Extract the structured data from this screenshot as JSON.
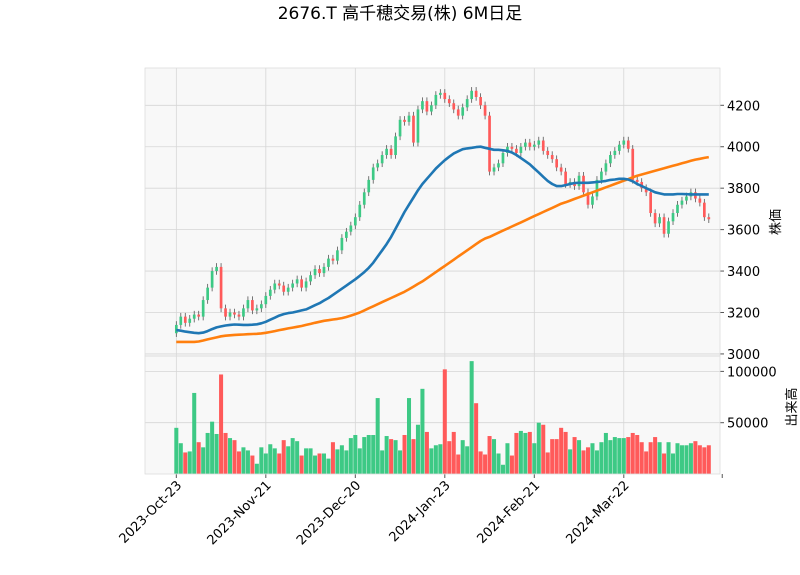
{
  "chart_data": {
    "type": "candlestick",
    "title": "2676.T 高千穂交易(株) 6M日足",
    "price_panel": {
      "ylabel": "株価",
      "ylim": [
        2990,
        4380
      ],
      "yticks": [
        3000,
        3200,
        3400,
        3600,
        3800,
        4000,
        4200
      ],
      "grid": true
    },
    "volume_panel": {
      "ylabel": "出来高",
      "ylim": [
        0,
        115000
      ],
      "yticks": [
        50000,
        100000
      ],
      "ytick_labels": [
        "50000",
        "100000"
      ],
      "grid": true
    },
    "x_ticks": [
      {
        "label": "2023-Oct-23",
        "index": 0
      },
      {
        "label": "2023-Nov-21",
        "index": 20
      },
      {
        "label": "2023-Dec-20",
        "index": 40
      },
      {
        "label": "2024-Jan-23",
        "index": 60
      },
      {
        "label": "2024-Feb-21",
        "index": 80
      },
      {
        "label": "2024-Mar-22",
        "index": 100
      }
    ],
    "x_range": [
      -7,
      121.5
    ],
    "colors": {
      "up": "#3dc985",
      "down": "#ff5a5a",
      "ma_short": "#1f77b4",
      "ma_long": "#ff7f0e",
      "panel_bg": "#f8f8f8",
      "grid": "#d6d6d6"
    },
    "close": [
      3140,
      3180,
      3150,
      3170,
      3190,
      3180,
      3260,
      3320,
      3400,
      3420,
      3220,
      3180,
      3200,
      3190,
      3180,
      3220,
      3260,
      3210,
      3220,
      3240,
      3280,
      3310,
      3340,
      3330,
      3300,
      3320,
      3340,
      3360,
      3320,
      3350,
      3380,
      3410,
      3390,
      3420,
      3460,
      3450,
      3500,
      3560,
      3590,
      3620,
      3660,
      3720,
      3780,
      3840,
      3900,
      3920,
      3960,
      3990,
      3960,
      4050,
      4130,
      4120,
      4150,
      4020,
      4180,
      4220,
      4170,
      4200,
      4250,
      4260,
      4230,
      4210,
      4180,
      4150,
      4190,
      4230,
      4270,
      4240,
      4200,
      4150,
      3880,
      3900,
      3920,
      3970,
      4000,
      3990,
      3970,
      4000,
      4020,
      4000,
      4010,
      4030,
      3980,
      3960,
      3940,
      3900,
      3880,
      3820,
      3830,
      3810,
      3860,
      3780,
      3720,
      3760,
      3840,
      3880,
      3920,
      3960,
      3980,
      4010,
      4030,
      3990,
      3840,
      3830,
      3800,
      3780,
      3680,
      3630,
      3660,
      3580,
      3640,
      3680,
      3720,
      3740,
      3760,
      3780,
      3750,
      3730,
      3660,
      3650
    ],
    "volume": [
      45000,
      30000,
      21000,
      22000,
      79000,
      31000,
      26000,
      40000,
      51000,
      39000,
      97000,
      40000,
      35000,
      33000,
      22000,
      26000,
      23000,
      18000,
      10000,
      26000,
      20000,
      29000,
      25000,
      20000,
      33000,
      27000,
      35000,
      32000,
      18000,
      25000,
      25000,
      18000,
      20000,
      20000,
      15000,
      31000,
      24000,
      28000,
      23000,
      35000,
      38000,
      25000,
      36000,
      38000,
      38000,
      74000,
      23000,
      37000,
      34000,
      33000,
      23000,
      38000,
      74000,
      34000,
      48000,
      83000,
      41000,
      25000,
      28000,
      29000,
      102000,
      32000,
      41000,
      19000,
      33000,
      27000,
      110000,
      69000,
      22000,
      19000,
      37000,
      34000,
      20000,
      9000,
      30000,
      18000,
      40000,
      42000,
      40000,
      41000,
      30000,
      50000,
      48000,
      21000,
      34000,
      34000,
      45000,
      41000,
      24000,
      36000,
      33000,
      23000,
      26000,
      30000,
      23000,
      31000,
      40000,
      33000,
      36000,
      35000,
      35000,
      36000,
      40000,
      38000,
      31000,
      22000,
      31000,
      36000,
      31000,
      20000,
      31000,
      20000,
      30000,
      28000,
      28000,
      30000,
      32000,
      28000,
      26000,
      28000
    ],
    "ma_short": [
      3115,
      3112,
      3108,
      3105,
      3102,
      3100,
      3103,
      3110,
      3120,
      3128,
      3133,
      3137,
      3140,
      3142,
      3141,
      3140,
      3140,
      3141,
      3143,
      3148,
      3155,
      3165,
      3175,
      3185,
      3192,
      3197,
      3200,
      3205,
      3210,
      3215,
      3225,
      3235,
      3245,
      3258,
      3270,
      3285,
      3300,
      3315,
      3330,
      3345,
      3360,
      3377,
      3395,
      3415,
      3440,
      3470,
      3500,
      3530,
      3565,
      3605,
      3645,
      3685,
      3720,
      3755,
      3790,
      3820,
      3845,
      3870,
      3895,
      3915,
      3935,
      3952,
      3968,
      3978,
      3988,
      3992,
      3995,
      3998,
      4000,
      3995,
      3990,
      3985,
      3985,
      3983,
      3980,
      3972,
      3960,
      3945,
      3930,
      3915,
      3895,
      3875,
      3855,
      3835,
      3820,
      3810,
      3810,
      3815,
      3820,
      3825,
      3826,
      3826,
      3826,
      3828,
      3830,
      3832,
      3835,
      3840,
      3842,
      3845,
      3845,
      3842,
      3833,
      3820,
      3810,
      3800,
      3790,
      3780,
      3775,
      3770,
      3770,
      3770,
      3772,
      3772,
      3771,
      3770,
      3770,
      3770,
      3770,
      3770
    ],
    "ma_long": [
      3058,
      3058,
      3058,
      3058,
      3058,
      3060,
      3065,
      3070,
      3075,
      3080,
      3085,
      3088,
      3090,
      3092,
      3093,
      3094,
      3095,
      3096,
      3097,
      3099,
      3102,
      3106,
      3110,
      3115,
      3119,
      3123,
      3127,
      3131,
      3135,
      3140,
      3145,
      3150,
      3155,
      3160,
      3163,
      3166,
      3169,
      3173,
      3178,
      3185,
      3192,
      3200,
      3210,
      3220,
      3230,
      3240,
      3250,
      3260,
      3270,
      3280,
      3290,
      3300,
      3312,
      3325,
      3338,
      3350,
      3365,
      3380,
      3395,
      3410,
      3425,
      3440,
      3455,
      3470,
      3485,
      3500,
      3515,
      3530,
      3545,
      3557,
      3565,
      3575,
      3585,
      3595,
      3605,
      3615,
      3625,
      3635,
      3645,
      3655,
      3665,
      3675,
      3685,
      3695,
      3705,
      3715,
      3725,
      3732,
      3740,
      3748,
      3756,
      3764,
      3772,
      3780,
      3788,
      3796,
      3804,
      3812,
      3820,
      3828,
      3836,
      3844,
      3852,
      3860,
      3866,
      3872,
      3878,
      3884,
      3890,
      3896,
      3902,
      3908,
      3914,
      3920,
      3926,
      3932,
      3938,
      3942,
      3946,
      3950
    ]
  }
}
